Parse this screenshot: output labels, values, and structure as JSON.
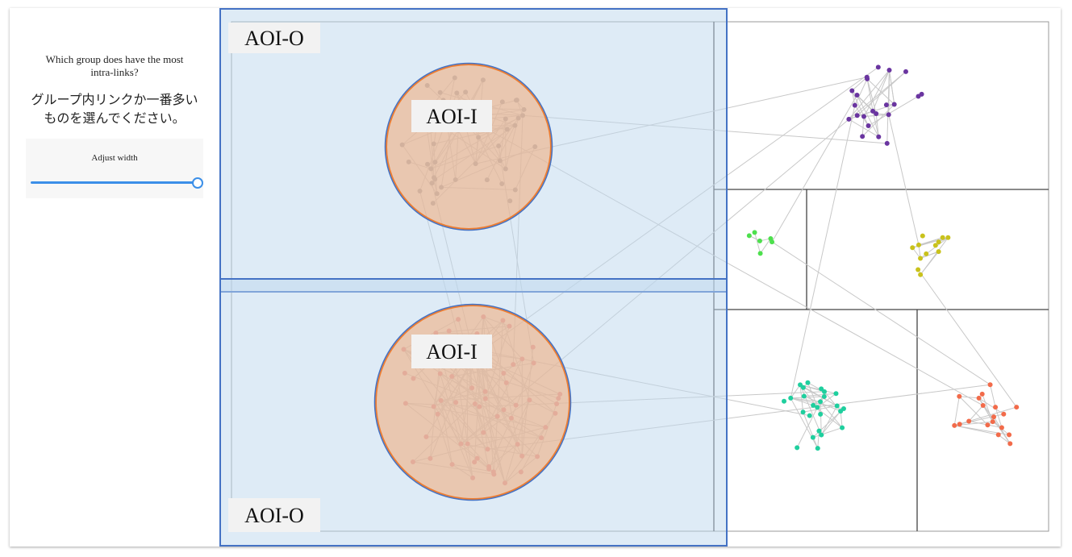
{
  "question_en": "Which group does have the most intra-links?",
  "question_ja": "グループ内リンクか一番多いものを選んでください。",
  "slider_label": "Adjust width",
  "aois": [
    {
      "label": "AOI-O"
    },
    {
      "label": "AOI-I"
    },
    {
      "label": "AOI-O"
    },
    {
      "label": "AOI-I"
    }
  ]
}
